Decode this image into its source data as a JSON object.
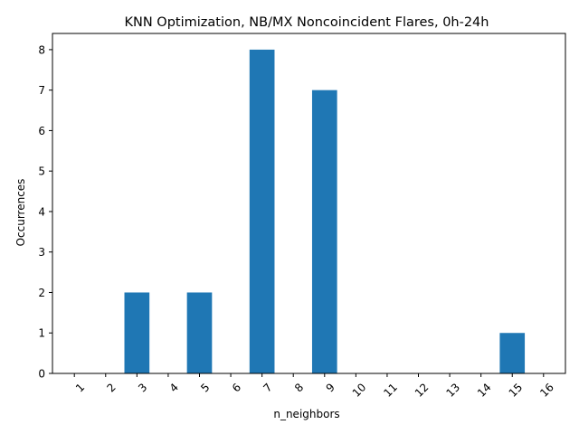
{
  "chart_data": {
    "type": "bar",
    "title": "KNN Optimization, NB/MX Noncoincident Flares, 0h-24h",
    "xlabel": "n_neighbors",
    "ylabel": "Occurrences",
    "categories": [
      "1",
      "2",
      "3",
      "4",
      "5",
      "6",
      "7",
      "8",
      "9",
      "10",
      "11",
      "12",
      "13",
      "14",
      "15",
      "16"
    ],
    "values": [
      0,
      0,
      2,
      0,
      2,
      0,
      8,
      0,
      7,
      0,
      0,
      0,
      0,
      0,
      1,
      0
    ],
    "ylim": [
      0,
      8.4
    ],
    "yticks": [
      0,
      1,
      2,
      3,
      4,
      5,
      6,
      7,
      8
    ],
    "bar_color": "#1f77b4",
    "grid": false,
    "legend": "none",
    "xtick_rotation": 45
  }
}
